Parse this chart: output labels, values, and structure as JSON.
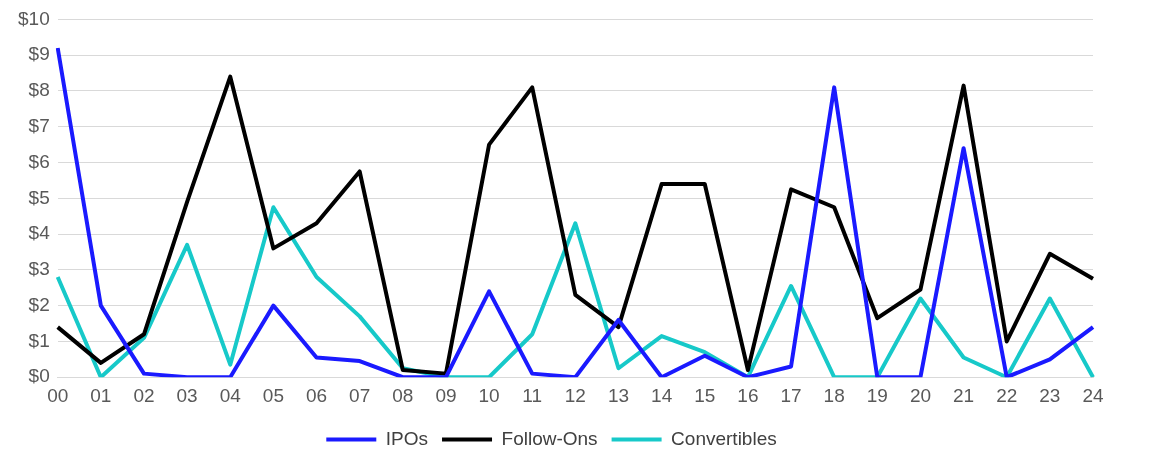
{
  "chart_data": {
    "type": "line",
    "categories": [
      "00",
      "01",
      "02",
      "03",
      "04",
      "05",
      "06",
      "07",
      "08",
      "09",
      "10",
      "11",
      "12",
      "13",
      "14",
      "15",
      "16",
      "17",
      "18",
      "19",
      "20",
      "21",
      "22",
      "23",
      "24"
    ],
    "series": [
      {
        "name": "IPOs",
        "color": "#1a1aff",
        "values": [
          9.2,
          2.0,
          0.1,
          0,
          0,
          2.0,
          0.55,
          0.45,
          0,
          0,
          2.4,
          0.1,
          0,
          1.6,
          0,
          0.6,
          0,
          0.3,
          8.1,
          0,
          0,
          6.4,
          0,
          0.5,
          1.4
        ]
      },
      {
        "name": "Follow-Ons",
        "color": "#000000",
        "values": [
          1.4,
          0.4,
          1.2,
          4.9,
          8.4,
          3.6,
          4.3,
          5.75,
          0.2,
          0.1,
          6.5,
          8.1,
          2.3,
          1.4,
          5.4,
          5.4,
          0.2,
          5.25,
          4.75,
          1.65,
          2.45,
          8.15,
          1.0,
          3.45,
          2.75
        ]
      },
      {
        "name": "Convertibles",
        "color": "#17c9c9",
        "values": [
          2.8,
          0,
          1.1,
          3.7,
          0.35,
          4.75,
          2.8,
          1.7,
          0.25,
          0,
          0,
          1.2,
          4.3,
          0.25,
          1.15,
          0.7,
          0,
          2.55,
          0,
          0,
          2.2,
          0.55,
          0,
          2.2,
          0
        ]
      }
    ],
    "ylim": [
      0,
      10
    ],
    "yticks": [
      {
        "value": 0,
        "label": "$0"
      },
      {
        "value": 1,
        "label": "$1"
      },
      {
        "value": 2,
        "label": "$2"
      },
      {
        "value": 3,
        "label": "$3"
      },
      {
        "value": 4,
        "label": "$4"
      },
      {
        "value": 5,
        "label": "$5"
      },
      {
        "value": 6,
        "label": "$6"
      },
      {
        "value": 7,
        "label": "$7"
      },
      {
        "value": 8,
        "label": "$8"
      },
      {
        "value": 9,
        "label": "$9"
      },
      {
        "value": 10,
        "label": "$10"
      }
    ],
    "grid": "y",
    "legend": "bottom",
    "marker": "none",
    "line_style": "solid"
  }
}
